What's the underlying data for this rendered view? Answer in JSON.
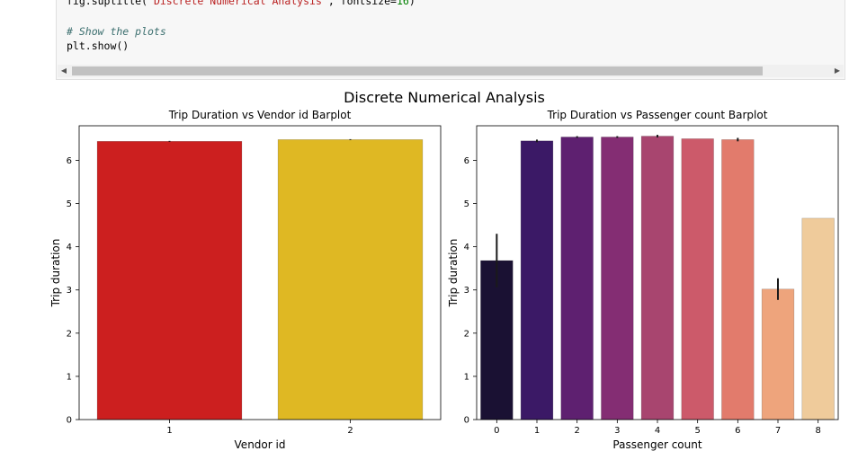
{
  "code": {
    "line1_prefix": "fig.suptitle(",
    "line1_string": "'Discrete Numerical Analysis'",
    "line1_mid": ", fontsize=",
    "line1_number": "16",
    "line1_suffix": ")",
    "comment": "# Show the plots",
    "line3": "plt.show()"
  },
  "suptitle": "Discrete Numerical Analysis",
  "chart_data": [
    {
      "type": "bar",
      "title": "Trip Duration vs Vendor id Barplot",
      "xlabel": "Vendor id",
      "ylabel": "Trip duration",
      "categories": [
        "1",
        "2"
      ],
      "values": [
        6.44,
        6.48
      ],
      "errors": [
        0.01,
        0.01
      ],
      "colors": [
        "#cc1f1f",
        "#dfb823"
      ],
      "ylim": [
        0,
        6.8
      ],
      "yticks": [
        0,
        1,
        2,
        3,
        4,
        5,
        6
      ],
      "grid": false
    },
    {
      "type": "bar",
      "title": "Trip Duration vs Passenger count Barplot",
      "xlabel": "Passenger count",
      "ylabel": "Trip duration",
      "categories": [
        "0",
        "1",
        "2",
        "3",
        "4",
        "5",
        "6",
        "7",
        "8"
      ],
      "values": [
        3.68,
        6.45,
        6.54,
        6.54,
        6.56,
        6.5,
        6.48,
        3.02,
        4.66
      ],
      "errors": [
        0.62,
        0.03,
        0.02,
        0.02,
        0.03,
        0.0,
        0.04,
        0.25,
        0.0
      ],
      "colors": [
        "#1a1133",
        "#3b1966",
        "#5e2070",
        "#842d73",
        "#a8456f",
        "#cc5a6a",
        "#e27b6c",
        "#eea47c",
        "#efcb9b"
      ],
      "ylim": [
        0,
        6.8
      ],
      "yticks": [
        0,
        1,
        2,
        3,
        4,
        5,
        6
      ],
      "grid": false
    }
  ]
}
